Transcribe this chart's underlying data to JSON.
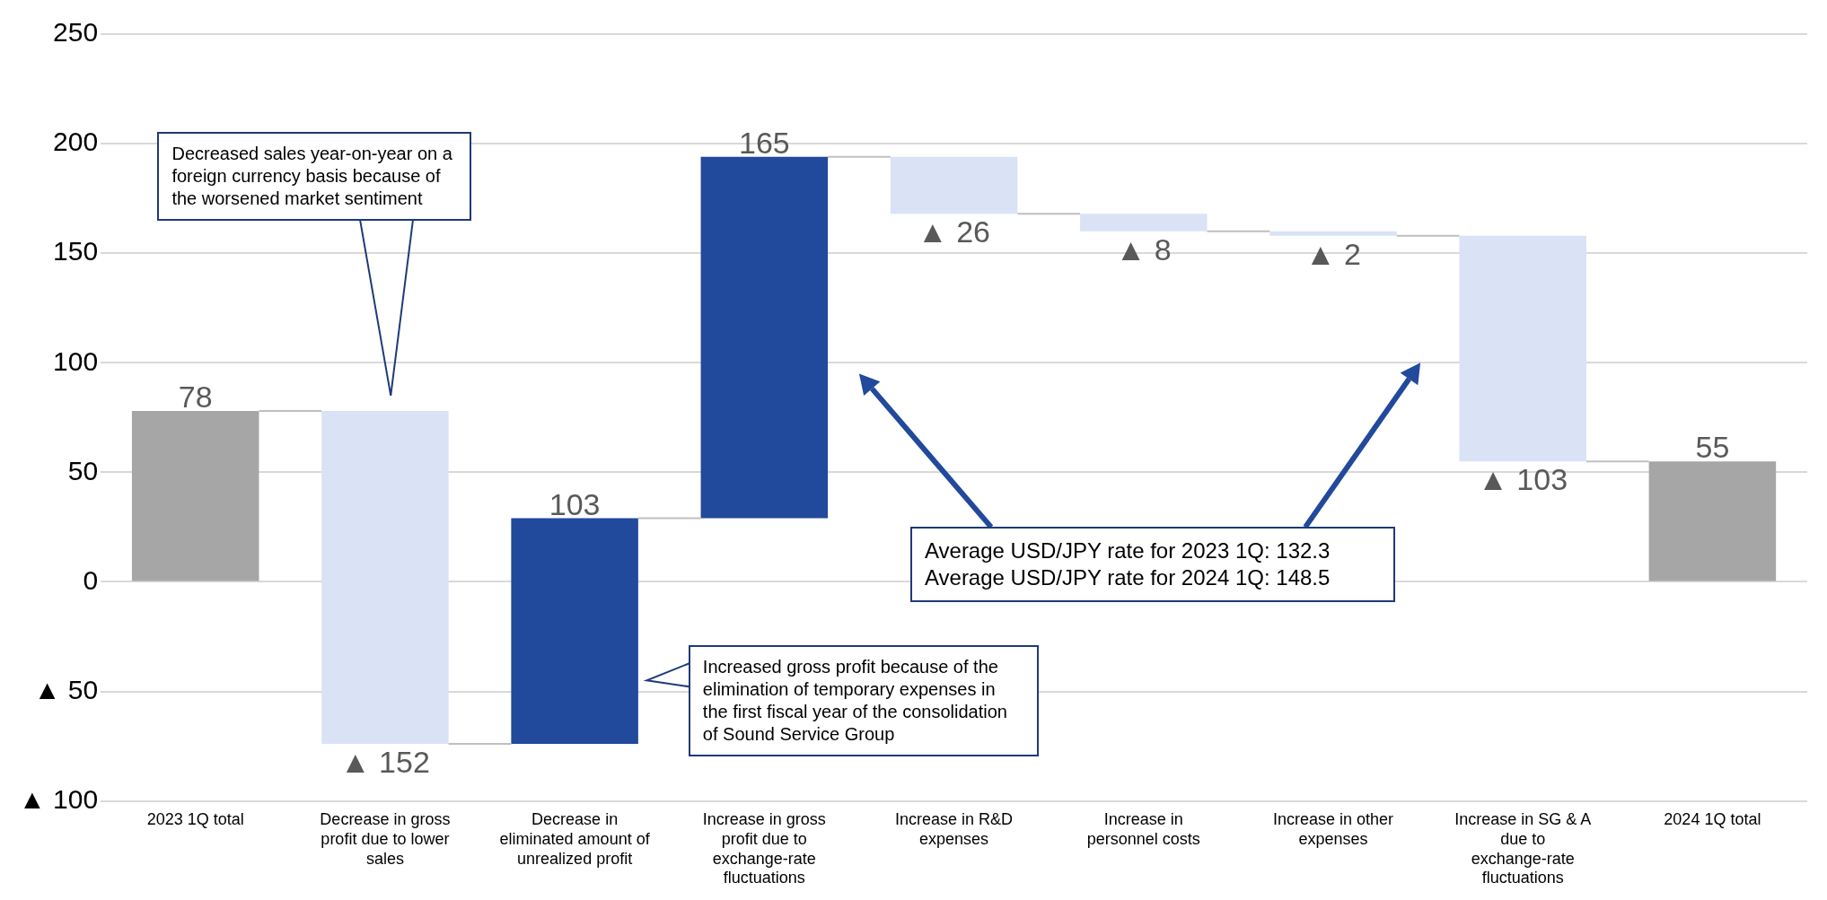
{
  "chart_data": {
    "type": "bar",
    "categories": [
      "2023 1Q total",
      "Decrease in gross profit due to lower sales",
      "Decrease in eliminated amount of unrealized profit",
      "Increase in gross profit due to exchange-rate fluctuations",
      "Increase in R&D expenses",
      "Increase in personnel costs",
      "Increase in other expenses",
      "Increase in SG & A due to exchange-rate fluctuations",
      "2024 1Q total"
    ],
    "values": [
      78,
      -152,
      103,
      165,
      -26,
      -8,
      -2,
      -103,
      55
    ],
    "base": [
      0,
      78,
      -74,
      29,
      194,
      168,
      160,
      158,
      0
    ],
    "colors": [
      "#a6a6a6",
      "#dae3f5",
      "#21499c",
      "#21499c",
      "#dae3f5",
      "#dae3f5",
      "#dae3f5",
      "#dae3f5",
      "#a6a6a6"
    ],
    "value_labels": [
      "78",
      "▲ 152",
      "103",
      "165",
      "▲ 26",
      "▲ 8",
      "▲ 2",
      "▲ 103",
      "55"
    ],
    "ylim": [
      -100,
      250
    ],
    "yticks": [
      {
        "value": -100,
        "label": "▲ 100"
      },
      {
        "value": -50,
        "label": "▲ 50"
      },
      0,
      50,
      100,
      150,
      200,
      250
    ],
    "grid": "y",
    "legend": false,
    "annotations": [
      "Decreased sales year-on-year on a foreign currency basis  because of the worsened market sentiment",
      "Increased gross profit because of the elimination of temporary expenses in the first fiscal year of the consolidation of Sound Service Group",
      "Average USD/JPY rate for 2023 1Q: 132.3\nAverage USD/JPY rate for 2024 1Q: 148.5"
    ]
  }
}
